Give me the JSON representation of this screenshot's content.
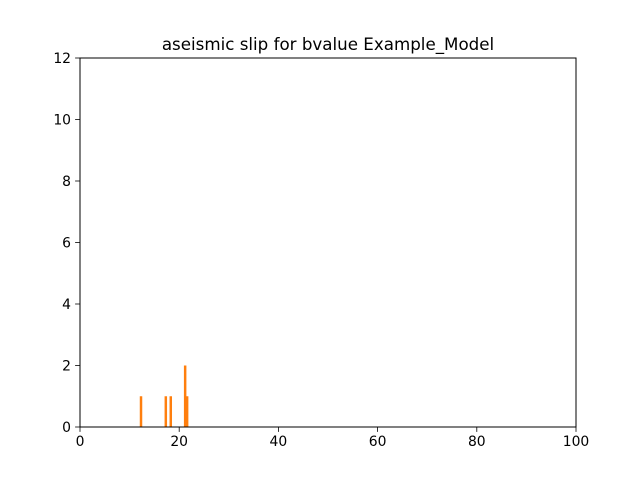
{
  "chart_data": {
    "type": "bar",
    "title": "aseismic slip for bvalue Example_Model",
    "xlabel": "",
    "ylabel": "",
    "xlim": [
      0,
      100
    ],
    "ylim": [
      0,
      12
    ],
    "x_ticks": [
      0,
      20,
      40,
      60,
      80,
      100
    ],
    "y_ticks": [
      0,
      2,
      4,
      6,
      8,
      10,
      12
    ],
    "x_tick_labels": [
      "0",
      "20",
      "40",
      "60",
      "80",
      "100"
    ],
    "y_tick_labels": [
      "0",
      "2",
      "4",
      "6",
      "8",
      "10",
      "12"
    ],
    "bar_width": 0.5,
    "color": "#ff7f0e",
    "grid": false,
    "series": [
      {
        "x": [
          12.3,
          17.3,
          18.3,
          21.2,
          21.6
        ],
        "values": [
          1,
          1,
          1,
          2,
          1
        ]
      }
    ]
  }
}
